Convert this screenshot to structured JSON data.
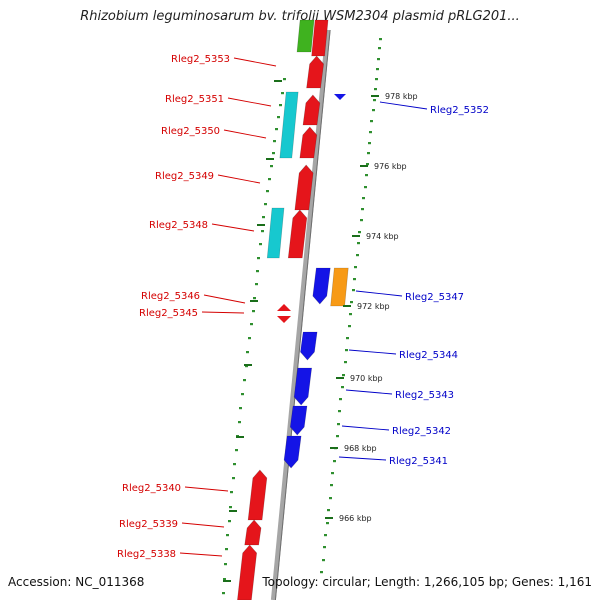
{
  "title": "Rhizobium leguminosarum bv. trifolii WSM2304 plasmid pRLG201...",
  "accession": "Accession: NC_011368",
  "summary": "Topology: circular; Length: 1,266,105 bp; Genes: 1,161",
  "colors": {
    "backbone": "#a6a6a6",
    "fwd_cds": "#e5151b",
    "rev_cds": "#1414e6",
    "cyan_feature": "#17c8cf",
    "orange_feature": "#f79a16",
    "green_feature": "#3fb21f",
    "gc_dots": "#2f8f2f",
    "label_forward": "#d40000",
    "label_reverse": "#0000c8"
  },
  "ticks": [
    {
      "label": "978 kbp"
    },
    {
      "label": "976 kbp"
    },
    {
      "label": "974 kbp"
    },
    {
      "label": "972 kbp"
    },
    {
      "label": "970 kbp"
    },
    {
      "label": "968 kbp"
    },
    {
      "label": "966 kbp"
    }
  ],
  "genes_forward": [
    {
      "label": "Rleg2_5353"
    },
    {
      "label": "Rleg2_5351"
    },
    {
      "label": "Rleg2_5350"
    },
    {
      "label": "Rleg2_5349"
    },
    {
      "label": "Rleg2_5348"
    },
    {
      "label": "Rleg2_5346"
    },
    {
      "label": "Rleg2_5345"
    },
    {
      "label": "Rleg2_5340"
    },
    {
      "label": "Rleg2_5339"
    },
    {
      "label": "Rleg2_5338"
    }
  ],
  "genes_reverse": [
    {
      "label": "Rleg2_5352"
    },
    {
      "label": "Rleg2_5347"
    },
    {
      "label": "Rleg2_5344"
    },
    {
      "label": "Rleg2_5343"
    },
    {
      "label": "Rleg2_5342"
    },
    {
      "label": "Rleg2_5341"
    }
  ]
}
